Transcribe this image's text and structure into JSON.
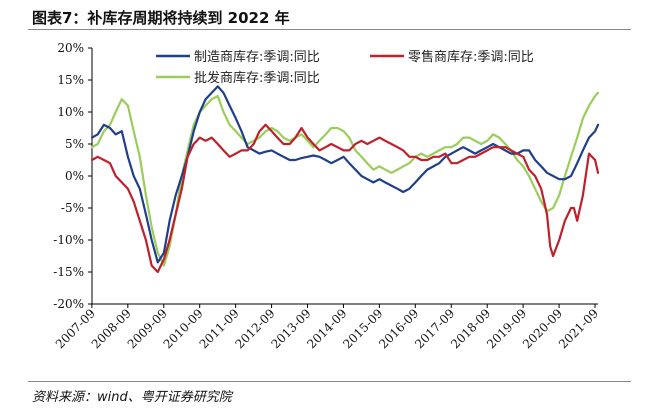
{
  "header": {
    "title": "图表7：补库存周期将持续到 2022 年"
  },
  "footer": {
    "source": "资料来源：wind、粤开证券研究院"
  },
  "chart_data": {
    "type": "line",
    "title": "图表7：补库存周期将持续到 2022 年",
    "xlabel": "",
    "ylabel": "",
    "ylim": [
      -20,
      20
    ],
    "y_ticks": [
      "20%",
      "15%",
      "10%",
      "5%",
      "0%",
      "-5%",
      "-10%",
      "-15%",
      "-20%"
    ],
    "y_tick_values": [
      20,
      15,
      10,
      5,
      0,
      -5,
      -10,
      -15,
      -20
    ],
    "x_range": [
      2007.67,
      2021.75
    ],
    "x_ticks": [
      "2007-09",
      "2008-09",
      "2009-09",
      "2010-09",
      "2011-09",
      "2012-09",
      "2013-09",
      "2014-09",
      "2015-09",
      "2016-09",
      "2017-09",
      "2018-09",
      "2019-09",
      "2020-09",
      "2021-09"
    ],
    "legend_position": "top",
    "series": [
      {
        "name": "制造商库存:季调:同比",
        "color": "#1f3f8c",
        "x": [
          2007.67,
          2007.83,
          2008.0,
          2008.17,
          2008.33,
          2008.5,
          2008.67,
          2008.83,
          2009.0,
          2009.17,
          2009.33,
          2009.5,
          2009.67,
          2009.83,
          2010.0,
          2010.17,
          2010.33,
          2010.5,
          2010.67,
          2010.83,
          2011.0,
          2011.17,
          2011.33,
          2011.5,
          2011.67,
          2011.83,
          2012.0,
          2012.17,
          2012.33,
          2012.5,
          2012.67,
          2012.83,
          2013.0,
          2013.17,
          2013.33,
          2013.5,
          2013.67,
          2013.83,
          2014.0,
          2014.17,
          2014.33,
          2014.5,
          2014.67,
          2014.83,
          2015.0,
          2015.17,
          2015.33,
          2015.5,
          2015.67,
          2015.83,
          2016.0,
          2016.17,
          2016.33,
          2016.5,
          2016.67,
          2016.83,
          2017.0,
          2017.17,
          2017.33,
          2017.5,
          2017.67,
          2017.83,
          2018.0,
          2018.17,
          2018.33,
          2018.5,
          2018.67,
          2018.83,
          2019.0,
          2019.17,
          2019.33,
          2019.5,
          2019.67,
          2019.83,
          2020.0,
          2020.17,
          2020.33,
          2020.5,
          2020.67,
          2020.83,
          2021.0,
          2021.17,
          2021.33,
          2021.5,
          2021.67,
          2021.75
        ],
        "values": [
          6,
          6.5,
          8,
          7.5,
          6.5,
          7,
          3,
          0,
          -2,
          -6,
          -10,
          -13.5,
          -12,
          -7,
          -3,
          0,
          3,
          7,
          10,
          12,
          13,
          14,
          13,
          11,
          9,
          7,
          4.5,
          4,
          3.5,
          3.8,
          4,
          3.5,
          3,
          2.5,
          2.5,
          2.8,
          3,
          3.2,
          3,
          2.5,
          2,
          2.5,
          3,
          2,
          1,
          0,
          -0.5,
          -1,
          -0.5,
          -1,
          -1.5,
          -2,
          -2.5,
          -2,
          -1,
          0,
          1,
          1.5,
          2,
          3,
          3.5,
          4,
          4.5,
          4,
          3.5,
          4,
          4.5,
          5,
          4.5,
          4,
          3.5,
          3.5,
          4,
          4,
          2.5,
          1.5,
          0.5,
          0,
          -0.5,
          -0.5,
          0,
          2,
          4,
          6,
          7,
          8
        ]
      },
      {
        "name": "零售商库存:季调:同比",
        "color": "#c0202a",
        "x": [
          2007.67,
          2007.83,
          2008.0,
          2008.17,
          2008.33,
          2008.5,
          2008.67,
          2008.83,
          2009.0,
          2009.17,
          2009.33,
          2009.5,
          2009.67,
          2009.83,
          2010.0,
          2010.17,
          2010.33,
          2010.5,
          2010.67,
          2010.83,
          2011.0,
          2011.17,
          2011.33,
          2011.5,
          2011.67,
          2011.83,
          2012.0,
          2012.17,
          2012.33,
          2012.5,
          2012.67,
          2012.83,
          2013.0,
          2013.17,
          2013.33,
          2013.5,
          2013.67,
          2013.83,
          2014.0,
          2014.17,
          2014.33,
          2014.5,
          2014.67,
          2014.83,
          2015.0,
          2015.17,
          2015.33,
          2015.5,
          2015.67,
          2015.83,
          2016.0,
          2016.17,
          2016.33,
          2016.5,
          2016.67,
          2016.83,
          2017.0,
          2017.17,
          2017.33,
          2017.5,
          2017.67,
          2017.83,
          2018.0,
          2018.17,
          2018.33,
          2018.5,
          2018.67,
          2018.83,
          2019.0,
          2019.17,
          2019.33,
          2019.5,
          2019.67,
          2019.83,
          2020.0,
          2020.17,
          2020.33,
          2020.42,
          2020.5,
          2020.67,
          2020.83,
          2021.0,
          2021.08,
          2021.17,
          2021.33,
          2021.5,
          2021.67,
          2021.75
        ],
        "values": [
          2.5,
          3,
          2.5,
          2,
          0,
          -1,
          -2,
          -4,
          -7,
          -10,
          -14,
          -15,
          -13,
          -10,
          -6,
          -2,
          3,
          5,
          6,
          5.5,
          6,
          5,
          4,
          3,
          3.5,
          4,
          4,
          5,
          7,
          8,
          7,
          6,
          5,
          5,
          6,
          7.5,
          6,
          5,
          4,
          4.5,
          5,
          4.5,
          4,
          4,
          5,
          5.5,
          5,
          5.5,
          6,
          5.5,
          5,
          4.5,
          4,
          3,
          3,
          2.5,
          2.5,
          3,
          3,
          3.5,
          2,
          2,
          2.5,
          3,
          3,
          3.5,
          4,
          4.5,
          4.5,
          4.5,
          4,
          3.5,
          3,
          1,
          0,
          -2,
          -6,
          -11,
          -12.5,
          -10,
          -7,
          -5,
          -5,
          -7,
          -3,
          3.5,
          2.5,
          0.5
        ]
      },
      {
        "name": "批发商库存:季调:同比",
        "color": "#9acd5a",
        "x": [
          2007.67,
          2007.83,
          2008.0,
          2008.17,
          2008.33,
          2008.5,
          2008.67,
          2008.83,
          2009.0,
          2009.17,
          2009.33,
          2009.5,
          2009.67,
          2009.83,
          2010.0,
          2010.17,
          2010.33,
          2010.5,
          2010.67,
          2010.83,
          2011.0,
          2011.17,
          2011.33,
          2011.5,
          2011.67,
          2011.83,
          2012.0,
          2012.17,
          2012.33,
          2012.5,
          2012.67,
          2012.83,
          2013.0,
          2013.17,
          2013.33,
          2013.5,
          2013.67,
          2013.83,
          2014.0,
          2014.17,
          2014.33,
          2014.5,
          2014.67,
          2014.83,
          2015.0,
          2015.17,
          2015.33,
          2015.5,
          2015.67,
          2015.83,
          2016.0,
          2016.17,
          2016.33,
          2016.5,
          2016.67,
          2016.83,
          2017.0,
          2017.17,
          2017.33,
          2017.5,
          2017.67,
          2017.83,
          2018.0,
          2018.17,
          2018.33,
          2018.5,
          2018.67,
          2018.83,
          2019.0,
          2019.17,
          2019.33,
          2019.5,
          2019.67,
          2019.83,
          2020.0,
          2020.17,
          2020.33,
          2020.5,
          2020.67,
          2020.83,
          2021.0,
          2021.17,
          2021.33,
          2021.5,
          2021.67,
          2021.75
        ],
        "values": [
          4.5,
          5,
          7,
          8,
          10,
          12,
          11,
          7,
          3,
          -3,
          -8,
          -12,
          -14,
          -11,
          -6,
          0,
          4,
          8,
          10,
          11,
          12,
          12.5,
          10,
          8,
          7,
          6,
          5,
          5.5,
          6,
          7,
          7.5,
          7,
          6,
          5.5,
          6,
          6.5,
          5.5,
          4.5,
          5.5,
          6.5,
          7.5,
          7.5,
          7,
          6,
          4,
          3,
          2,
          1,
          1.5,
          1,
          0.5,
          1,
          1.5,
          2,
          3,
          3.5,
          3,
          3.5,
          4,
          4.5,
          4.5,
          5,
          6,
          6,
          5.5,
          5,
          5.5,
          6.5,
          6,
          5,
          4,
          2.5,
          1.5,
          0,
          -2,
          -4,
          -5.5,
          -5,
          -3,
          0,
          3,
          6,
          9,
          11,
          12.5,
          13
        ]
      }
    ]
  }
}
